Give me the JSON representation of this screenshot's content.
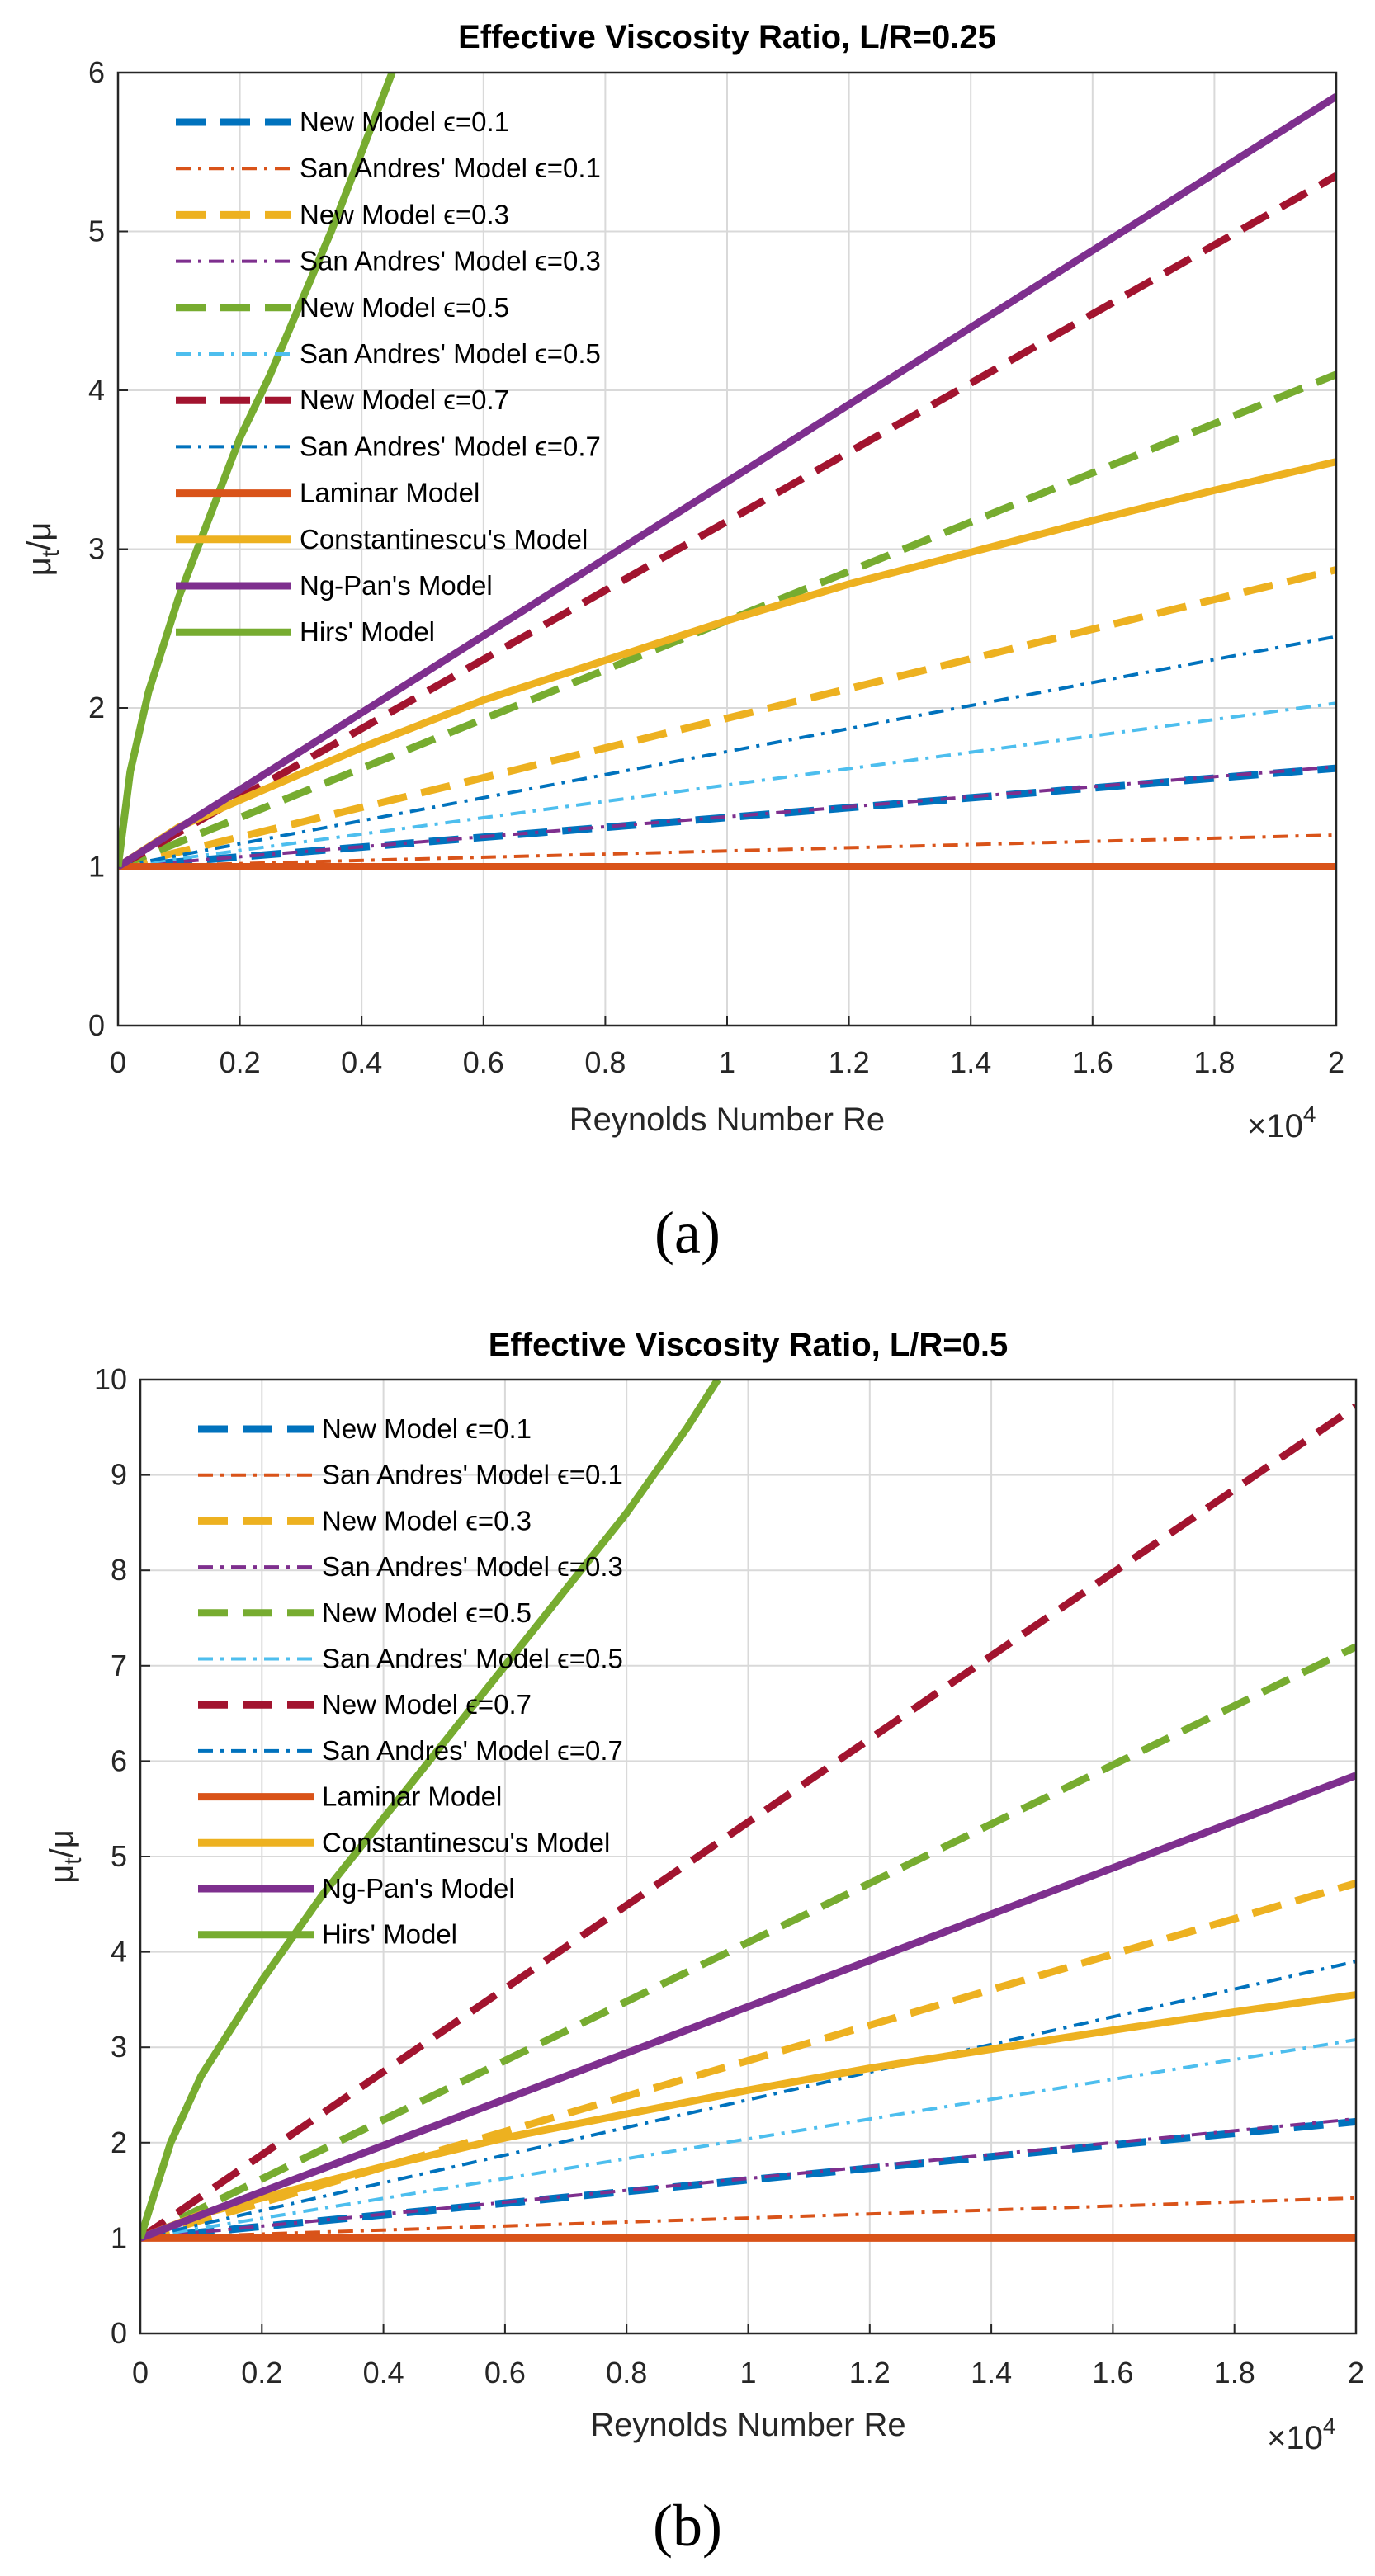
{
  "colors": {
    "blue": "#0072BD",
    "orange": "#D95319",
    "yellow": "#EDB120",
    "purple": "#7E2F8E",
    "green": "#77AC30",
    "lightblue": "#4DBEEE",
    "darkred": "#A2142F"
  },
  "legend_labels": [
    "New Model ϵ=0.1",
    "San Andres' Model ϵ=0.1",
    "New Model ϵ=0.3",
    "San Andres' Model ϵ=0.3",
    "New Model ϵ=0.5",
    "San Andres' Model ϵ=0.5",
    "New Model ϵ=0.7",
    "San Andres' Model ϵ=0.7",
    "Laminar Model",
    "Constantinescu's Model",
    "Ng-Pan's Model",
    "Hirs' Model"
  ],
  "chart_data": [
    {
      "type": "line",
      "caption": "(a)",
      "title": "Effective Viscosity Ratio, L/R=0.25",
      "xlabel": "Reynolds Number Re",
      "ylabel": "μt/μ",
      "x_exponent_label": "×10^4",
      "xlim": [
        0,
        2
      ],
      "ylim": [
        0,
        6
      ],
      "xticks": [
        "0",
        "0.2",
        "0.4",
        "0.6",
        "0.8",
        "1",
        "1.2",
        "1.4",
        "1.6",
        "1.8",
        "2"
      ],
      "yticks": [
        "0",
        "1",
        "2",
        "3",
        "4",
        "5",
        "6"
      ],
      "grid": true,
      "legend_position": "top-left",
      "series": [
        {
          "name": "New Model ϵ=0.1",
          "style": "dashed",
          "color": "blue",
          "x": [
            0,
            2
          ],
          "y": [
            1.0,
            1.62
          ]
        },
        {
          "name": "San Andres' Model ϵ=0.1",
          "style": "dashdot",
          "color": "orange",
          "x": [
            0,
            2
          ],
          "y": [
            1.0,
            1.2
          ]
        },
        {
          "name": "New Model ϵ=0.3",
          "style": "dashed",
          "color": "yellow",
          "x": [
            0,
            2
          ],
          "y": [
            1.0,
            2.87
          ]
        },
        {
          "name": "San Andres' Model ϵ=0.3",
          "style": "dashdot",
          "color": "purple",
          "x": [
            0,
            2
          ],
          "y": [
            1.0,
            1.63
          ]
        },
        {
          "name": "New Model ϵ=0.5",
          "style": "dashed",
          "color": "green",
          "x": [
            0,
            2
          ],
          "y": [
            1.0,
            4.1
          ]
        },
        {
          "name": "San Andres' Model ϵ=0.5",
          "style": "dashdot",
          "color": "lightblue",
          "x": [
            0,
            2
          ],
          "y": [
            1.0,
            2.03
          ]
        },
        {
          "name": "New Model ϵ=0.7",
          "style": "dashed",
          "color": "darkred",
          "x": [
            0,
            2
          ],
          "y": [
            1.0,
            5.35
          ]
        },
        {
          "name": "San Andres' Model ϵ=0.7",
          "style": "dashdot",
          "color": "blue",
          "x": [
            0,
            2
          ],
          "y": [
            1.0,
            2.45
          ]
        },
        {
          "name": "Laminar Model",
          "style": "solid",
          "color": "orange",
          "x": [
            0,
            2
          ],
          "y": [
            1.0,
            1.0
          ]
        },
        {
          "name": "Constantinescu's Model",
          "style": "solid",
          "color": "yellow",
          "x": [
            0,
            0.1,
            0.2,
            0.4,
            0.6,
            0.8,
            1.0,
            1.2,
            1.4,
            1.6,
            1.8,
            2.0
          ],
          "y": [
            1.0,
            1.25,
            1.42,
            1.75,
            2.05,
            2.3,
            2.55,
            2.78,
            2.98,
            3.18,
            3.37,
            3.55
          ]
        },
        {
          "name": "Ng-Pan's Model",
          "style": "solid",
          "color": "purple",
          "x": [
            0,
            2
          ],
          "y": [
            1.0,
            5.85
          ]
        },
        {
          "name": "Hirs' Model",
          "style": "solid",
          "color": "green",
          "x": [
            0,
            0.02,
            0.05,
            0.1,
            0.15,
            0.2,
            0.25,
            0.3,
            0.35,
            0.4,
            0.45
          ],
          "y": [
            1.0,
            1.6,
            2.1,
            2.7,
            3.2,
            3.7,
            4.1,
            4.55,
            5.0,
            5.5,
            6.0
          ]
        }
      ]
    },
    {
      "type": "line",
      "caption": "(b)",
      "title": "Effective Viscosity Ratio, L/R=0.5",
      "xlabel": "Reynolds Number Re",
      "ylabel": "μt/μ",
      "x_exponent_label": "×10^4",
      "xlim": [
        0,
        2
      ],
      "ylim": [
        0,
        10
      ],
      "xticks": [
        "0",
        "0.2",
        "0.4",
        "0.6",
        "0.8",
        "1",
        "1.2",
        "1.4",
        "1.6",
        "1.8",
        "2"
      ],
      "yticks": [
        "0",
        "1",
        "2",
        "3",
        "4",
        "5",
        "6",
        "7",
        "8",
        "9",
        "10"
      ],
      "grid": true,
      "legend_position": "top-left",
      "series": [
        {
          "name": "New Model ϵ=0.1",
          "style": "dashed",
          "color": "blue",
          "x": [
            0,
            2
          ],
          "y": [
            1.0,
            2.22
          ]
        },
        {
          "name": "San Andres' Model ϵ=0.1",
          "style": "dashdot",
          "color": "orange",
          "x": [
            0,
            2
          ],
          "y": [
            1.0,
            1.42
          ]
        },
        {
          "name": "New Model ϵ=0.3",
          "style": "dashed",
          "color": "yellow",
          "x": [
            0,
            2
          ],
          "y": [
            1.0,
            4.72
          ]
        },
        {
          "name": "San Andres' Model ϵ=0.3",
          "style": "dashdot",
          "color": "purple",
          "x": [
            0,
            2
          ],
          "y": [
            1.0,
            2.25
          ]
        },
        {
          "name": "New Model ϵ=0.5",
          "style": "dashed",
          "color": "green",
          "x": [
            0,
            2
          ],
          "y": [
            1.0,
            7.2
          ]
        },
        {
          "name": "San Andres' Model ϵ=0.5",
          "style": "dashdot",
          "color": "lightblue",
          "x": [
            0,
            2
          ],
          "y": [
            1.0,
            3.08
          ]
        },
        {
          "name": "New Model ϵ=0.7",
          "style": "dashed",
          "color": "darkred",
          "x": [
            0,
            2
          ],
          "y": [
            1.0,
            9.72
          ]
        },
        {
          "name": "San Andres' Model ϵ=0.7",
          "style": "dashdot",
          "color": "blue",
          "x": [
            0,
            2
          ],
          "y": [
            1.0,
            3.9
          ]
        },
        {
          "name": "Laminar Model",
          "style": "solid",
          "color": "orange",
          "x": [
            0,
            2
          ],
          "y": [
            1.0,
            1.0
          ]
        },
        {
          "name": "Constantinescu's Model",
          "style": "solid",
          "color": "yellow",
          "x": [
            0,
            0.1,
            0.2,
            0.4,
            0.6,
            0.8,
            1.0,
            1.2,
            1.4,
            1.6,
            1.8,
            2.0
          ],
          "y": [
            1.0,
            1.25,
            1.42,
            1.75,
            2.05,
            2.3,
            2.55,
            2.78,
            2.98,
            3.18,
            3.37,
            3.55
          ]
        },
        {
          "name": "Ng-Pan's Model",
          "style": "solid",
          "color": "purple",
          "x": [
            0,
            2
          ],
          "y": [
            1.0,
            5.85
          ]
        },
        {
          "name": "Hirs' Model",
          "style": "solid",
          "color": "green",
          "x": [
            0,
            0.05,
            0.1,
            0.2,
            0.3,
            0.4,
            0.5,
            0.6,
            0.7,
            0.8,
            0.9,
            0.95
          ],
          "y": [
            1.0,
            2.0,
            2.7,
            3.7,
            4.6,
            5.4,
            6.2,
            7.0,
            7.8,
            8.6,
            9.5,
            10.0
          ]
        }
      ]
    }
  ]
}
